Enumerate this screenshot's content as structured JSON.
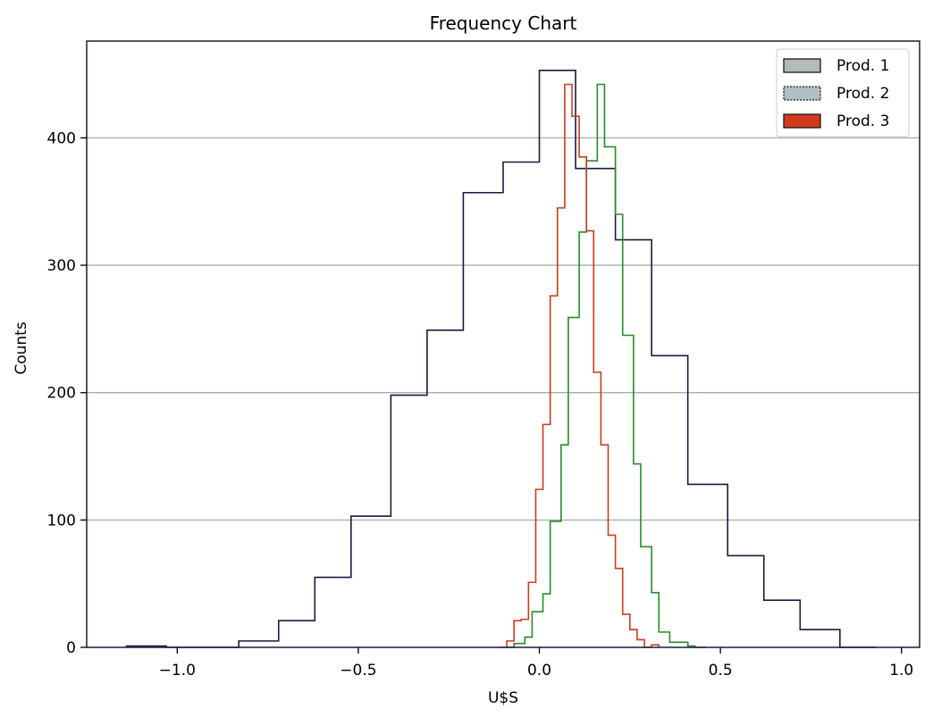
{
  "chart_data": {
    "type": "histogram",
    "title": "Frequency Chart",
    "xlabel": "U$S",
    "ylabel": "Counts",
    "xlim": [
      -1.25,
      1.05
    ],
    "ylim": [
      0,
      476
    ],
    "xticks": [
      -1.0,
      -0.5,
      0.0,
      0.5,
      1.0
    ],
    "xtick_labels": [
      "−1.0",
      "−0.5",
      "0.0",
      "0.5",
      "1.0"
    ],
    "yticks": [
      0,
      100,
      200,
      300,
      400
    ],
    "ytick_labels": [
      "0",
      "100",
      "200",
      "300",
      "400"
    ],
    "grid": "y",
    "grid_color": "#9fb0aa",
    "legend_position": "top-right",
    "series": [
      {
        "name": "Prod. 1",
        "color": "#1a1a40",
        "legend_fill": "#b3bab8",
        "edges": [
          -1.14,
          -1.03,
          -0.93,
          -0.83,
          -0.72,
          -0.62,
          -0.52,
          -0.41,
          -0.31,
          -0.21,
          -0.1,
          0.0,
          0.1,
          0.21,
          0.31,
          0.41,
          0.52,
          0.62,
          0.72,
          0.83,
          0.93
        ],
        "values": [
          1,
          0,
          0,
          5,
          21,
          55,
          103,
          198,
          249,
          357,
          381,
          453,
          376,
          320,
          229,
          128,
          72,
          37,
          14,
          0
        ]
      },
      {
        "name": "Prod. 2",
        "color": "#2a8a2a",
        "legend_fill": "#b0bfc4",
        "edges": [
          -0.09,
          -0.07,
          -0.04,
          -0.02,
          0.01,
          0.03,
          0.06,
          0.08,
          0.11,
          0.13,
          0.16,
          0.18,
          0.21,
          0.23,
          0.26,
          0.28,
          0.31,
          0.33,
          0.36,
          0.38,
          0.41,
          0.43,
          0.46
        ],
        "values": [
          0,
          3,
          8,
          28,
          42,
          99,
          159,
          259,
          326,
          382,
          442,
          393,
          340,
          245,
          144,
          79,
          43,
          12,
          4,
          4,
          1,
          0
        ]
      },
      {
        "name": "Prod. 3",
        "color": "#d03a1e",
        "legend_fill": "#d03a1e",
        "edges": [
          -0.11,
          -0.09,
          -0.07,
          -0.05,
          -0.03,
          -0.01,
          0.01,
          0.03,
          0.05,
          0.07,
          0.09,
          0.11,
          0.13,
          0.15,
          0.17,
          0.19,
          0.21,
          0.23,
          0.25,
          0.27,
          0.29,
          0.31,
          0.33
        ],
        "values": [
          0,
          5,
          21,
          22,
          51,
          124,
          175,
          276,
          345,
          442,
          417,
          385,
          327,
          216,
          159,
          88,
          62,
          26,
          14,
          6,
          0,
          2
        ]
      }
    ]
  }
}
